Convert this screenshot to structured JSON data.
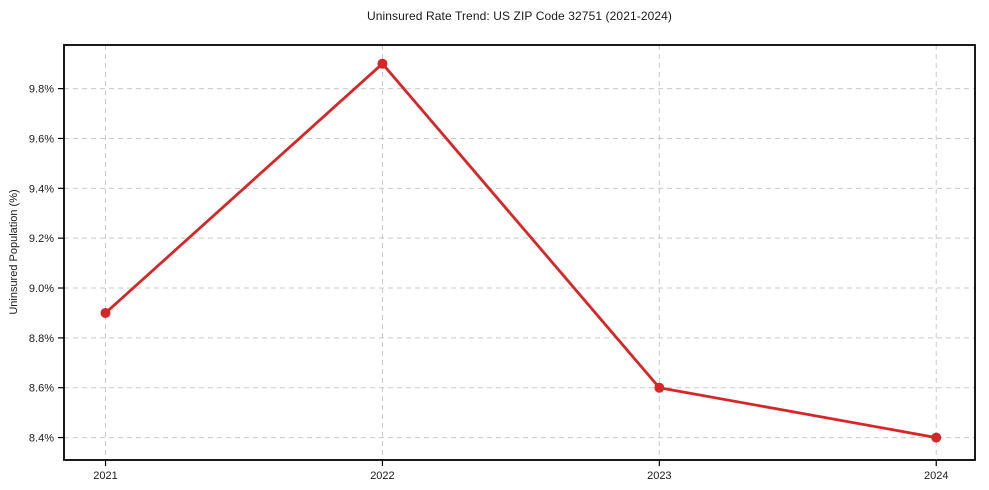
{
  "chart_data": {
    "type": "line",
    "title": "Uninsured Rate Trend: US ZIP Code 32751 (2021-2024)",
    "xlabel": "",
    "ylabel": "Uninsured Population (%)",
    "x": [
      2021,
      2022,
      2023,
      2024
    ],
    "x_tick_labels": [
      "2021",
      "2022",
      "2023",
      "2024"
    ],
    "series": [
      {
        "name": "Uninsured rate",
        "values": [
          8.9,
          9.9,
          8.6,
          8.4
        ]
      }
    ],
    "y_ticks": [
      8.4,
      8.6,
      8.8,
      9.0,
      9.2,
      9.4,
      9.6,
      9.8
    ],
    "y_tick_decimals": 1,
    "y_tick_suffix": "%",
    "xlim": [
      2020.85,
      2024.14
    ],
    "ylim": [
      8.31,
      9.975
    ],
    "grid": true,
    "grid_style": "dashed",
    "legend": false,
    "markers": true,
    "colors": {
      "line": "#d62728",
      "marker": "#d62728",
      "grid": "#c9c9c9",
      "spine": "#000000",
      "text": "#1a1a1a",
      "background": "#ffffff"
    }
  }
}
